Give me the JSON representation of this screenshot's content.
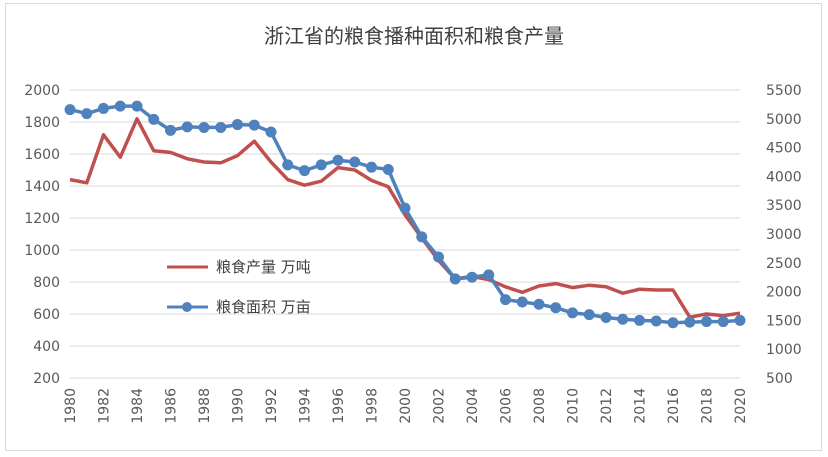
{
  "chart_data": {
    "type": "line",
    "title": "浙江省的粮食播种面积和粮食产量",
    "x": [
      1980,
      1981,
      1982,
      1983,
      1984,
      1985,
      1986,
      1987,
      1988,
      1989,
      1990,
      1991,
      1992,
      1993,
      1994,
      1995,
      1996,
      1997,
      1998,
      1999,
      2000,
      2001,
      2002,
      2003,
      2004,
      2005,
      2006,
      2007,
      2008,
      2009,
      2010,
      2011,
      2012,
      2013,
      2014,
      2015,
      2016,
      2017,
      2018,
      2019,
      2020
    ],
    "x_tick_labels": [
      "1980",
      "1982",
      "1984",
      "1986",
      "1988",
      "1990",
      "1992",
      "1994",
      "1996",
      "1998",
      "2000",
      "2002",
      "2004",
      "2006",
      "2008",
      "2010",
      "2012",
      "2014",
      "2016",
      "2018",
      "2020"
    ],
    "y_left": {
      "ylim": [
        200,
        2000
      ],
      "ticks": [
        "2000",
        "1800",
        "1600",
        "1400",
        "1200",
        "1000",
        "800",
        "600",
        "400",
        "200"
      ]
    },
    "y_right": {
      "ylim": [
        500,
        5500
      ],
      "ticks": [
        "5500",
        "5000",
        "4500",
        "4000",
        "3500",
        "3000",
        "2500",
        "2000",
        "1500",
        "1000",
        "500"
      ]
    },
    "series": [
      {
        "name": "粮食产量 万吨",
        "axis": "left",
        "color": "#c0504d",
        "marker": "none",
        "values": [
          1440,
          1420,
          1720,
          1580,
          1820,
          1620,
          1610,
          1570,
          1550,
          1545,
          1590,
          1680,
          1550,
          1440,
          1405,
          1430,
          1515,
          1500,
          1435,
          1395,
          1220,
          1075,
          935,
          820,
          835,
          815,
          770,
          735,
          775,
          790,
          765,
          780,
          770,
          730,
          755,
          750,
          750,
          580,
          600,
          590,
          605
        ]
      },
      {
        "name": "粮食面积 万亩",
        "axis": "right",
        "color": "#4f81bd",
        "marker": "circle",
        "values": [
          5160,
          5090,
          5180,
          5220,
          5220,
          4990,
          4800,
          4860,
          4850,
          4850,
          4900,
          4890,
          4770,
          4200,
          4100,
          4200,
          4280,
          4250,
          4160,
          4120,
          3450,
          2950,
          2600,
          2220,
          2250,
          2290,
          1860,
          1820,
          1780,
          1720,
          1630,
          1600,
          1550,
          1520,
          1500,
          1490,
          1460,
          1470,
          1480,
          1480,
          1500
        ]
      }
    ]
  }
}
